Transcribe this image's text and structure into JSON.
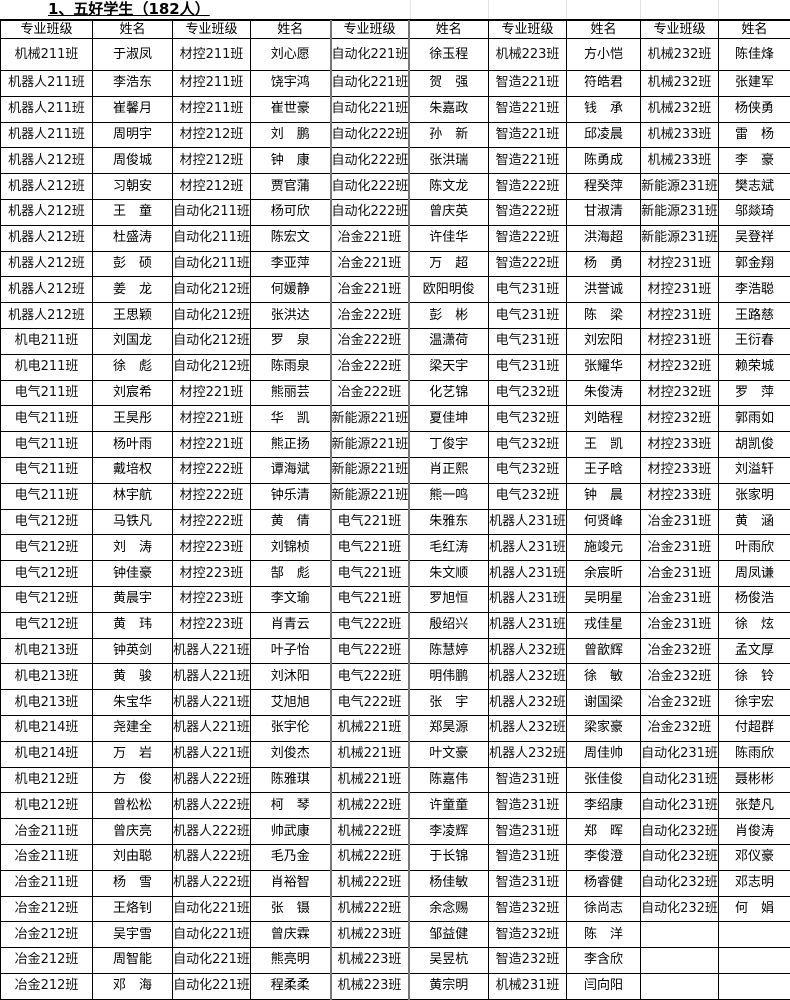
{
  "title": "1、五好学生（182人）",
  "headers": [
    "专业班级",
    "姓名",
    "专业班级",
    "姓名",
    "专业班级",
    "姓名",
    "专业班级",
    "姓名",
    "专业班级",
    "姓名"
  ],
  "rows": [
    [
      "机械211班",
      "于淑凤",
      "材控211班",
      "刘心愿",
      "自动化221班",
      "徐玉程",
      "机械223班",
      "方小恺",
      "机械232班",
      "陈佳烽"
    ],
    [
      "机器人211班",
      "李浩东",
      "材控211班",
      "饶宇鸿",
      "自动化221班",
      "贺　强",
      "智造221班",
      "符皓君",
      "机械232班",
      "张建军"
    ],
    [
      "机器人211班",
      "崔馨月",
      "材控211班",
      "崔世豪",
      "自动化221班",
      "朱嘉政",
      "智造221班",
      "钱　承",
      "机械232班",
      "杨侠勇"
    ],
    [
      "机器人211班",
      "周明宇",
      "材控212班",
      "刘　鹏",
      "自动化222班",
      "孙　新",
      "智造221班",
      "邱凌晨",
      "机械233班",
      "雷　杨"
    ],
    [
      "机器人212班",
      "周俊城",
      "材控212班",
      "钟　康",
      "自动化222班",
      "张洪瑞",
      "智造221班",
      "陈勇成",
      "机械233班",
      "李　豪"
    ],
    [
      "机器人212班",
      "习朝安",
      "材控212班",
      "贾官蒲",
      "自动化222班",
      "陈文龙",
      "智造222班",
      "程癸萍",
      "新能源231班",
      "樊志斌"
    ],
    [
      "机器人212班",
      "王　童",
      "自动化211班",
      "杨可欣",
      "自动化222班",
      "曾庆英",
      "智造222班",
      "甘淑清",
      "新能源231班",
      "邬燚琦"
    ],
    [
      "机器人212班",
      "杜盛涛",
      "自动化211班",
      "陈宏文",
      "冶金221班",
      "许佳华",
      "智造222班",
      "洪海超",
      "新能源231班",
      "吴登祥"
    ],
    [
      "机器人212班",
      "彭　硕",
      "自动化211班",
      "李亚萍",
      "冶金221班",
      "万　超",
      "智造222班",
      "杨　勇",
      "材控231班",
      "郭金翔"
    ],
    [
      "机器人212班",
      "姜　龙",
      "自动化212班",
      "何媛静",
      "冶金221班",
      "欧阳明俊",
      "电气231班",
      "洪誉诚",
      "材控231班",
      "李浩聪"
    ],
    [
      "机器人212班",
      "王思颖",
      "自动化212班",
      "张洪达",
      "冶金222班",
      "彭　彬",
      "电气231班",
      "陈　梁",
      "材控231班",
      "王路慈"
    ],
    [
      "机电211班",
      "刘国龙",
      "自动化212班",
      "罗　泉",
      "冶金222班",
      "温潇荷",
      "电气231班",
      "刘宏阳",
      "材控231班",
      "王衍春"
    ],
    [
      "机电211班",
      "徐　彪",
      "自动化212班",
      "陈雨泉",
      "冶金222班",
      "梁天宇",
      "电气231班",
      "张耀华",
      "材控232班",
      "赖荣城"
    ],
    [
      "电气211班",
      "刘宸希",
      "材控221班",
      "熊丽芸",
      "冶金222班",
      "化艺锦",
      "电气232班",
      "朱俊涛",
      "材控232班",
      "罗　萍"
    ],
    [
      "电气211班",
      "王昊彤",
      "材控221班",
      "华　凯",
      "新能源221班",
      "夏佳坤",
      "电气232班",
      "刘皓程",
      "材控232班",
      "郭雨如"
    ],
    [
      "电气211班",
      "杨叶雨",
      "材控221班",
      "熊正扬",
      "新能源221班",
      "丁俊宇",
      "电气232班",
      "王　凯",
      "材控233班",
      "胡凯俊"
    ],
    [
      "电气211班",
      "戴培权",
      "材控222班",
      "谭海斌",
      "新能源221班",
      "肖正熙",
      "电气232班",
      "王子晗",
      "材控233班",
      "刘溢轩"
    ],
    [
      "电气211班",
      "林宇航",
      "材控222班",
      "钟乐清",
      "新能源221班",
      "熊一鸣",
      "电气232班",
      "钟　晨",
      "材控233班",
      "张家明"
    ],
    [
      "电气212班",
      "马铁凡",
      "材控222班",
      "黄　倩",
      "电气221班",
      "朱雅东",
      "机器人231班",
      "何贤峰",
      "冶金231班",
      "黄　涵"
    ],
    [
      "电气212班",
      "刘　涛",
      "材控223班",
      "刘锦桢",
      "电气221班",
      "毛红涛",
      "机器人231班",
      "施竣元",
      "冶金231班",
      "叶雨欣"
    ],
    [
      "电气212班",
      "钟佳豪",
      "材控223班",
      "郜　彪",
      "电气221班",
      "朱文顺",
      "机器人231班",
      "余宸昕",
      "冶金231班",
      "周凤谦"
    ],
    [
      "电气212班",
      "黄晨宇",
      "材控223班",
      "李文瑜",
      "电气221班",
      "罗旭恒",
      "机器人231班",
      "吴明星",
      "冶金231班",
      "杨俊浩"
    ],
    [
      "电气212班",
      "黄　玮",
      "材控223班",
      "肖青云",
      "电气222班",
      "殷绍兴",
      "机器人231班",
      "戎佳星",
      "冶金231班",
      "徐　炫"
    ],
    [
      "机电213班",
      "钟英剑",
      "机器人221班",
      "叶子怡",
      "电气222班",
      "陈慧婷",
      "机器人232班",
      "曾歆辉",
      "冶金232班",
      "孟文厚"
    ],
    [
      "机电213班",
      "黄　骏",
      "机器人221班",
      "刘沐阳",
      "电气222班",
      "明伟鹏",
      "机器人232班",
      "徐　敏",
      "冶金232班",
      "徐　铃"
    ],
    [
      "机电213班",
      "朱宝华",
      "机器人221班",
      "艾旭旭",
      "电气222班",
      "张　宇",
      "机器人232班",
      "谢国梁",
      "冶金232班",
      "徐宇宏"
    ],
    [
      "机电214班",
      "尧建全",
      "机器人221班",
      "张宇伦",
      "机械221班",
      "郑昊源",
      "机器人232班",
      "梁家豪",
      "冶金232班",
      "付超群"
    ],
    [
      "机电214班",
      "万　岩",
      "机器人221班",
      "刘俊杰",
      "机械221班",
      "叶文豪",
      "机器人232班",
      "周佳帅",
      "自动化231班",
      "陈雨欣"
    ],
    [
      "机电212班",
      "方　俊",
      "机器人222班",
      "陈雅琪",
      "机械221班",
      "陈嘉伟",
      "智造231班",
      "张佳俊",
      "自动化231班",
      "聂彬彬"
    ],
    [
      "机电212班",
      "曾松松",
      "机器人222班",
      "柯　琴",
      "机械222班",
      "许童童",
      "智造231班",
      "李绍康",
      "自动化231班",
      "张楚凡"
    ],
    [
      "冶金211班",
      "曾庆亮",
      "机器人222班",
      "帅武康",
      "机械222班",
      "李凌辉",
      "智造231班",
      "郑　晖",
      "自动化232班",
      "肖俊涛"
    ],
    [
      "冶金211班",
      "刘由聪",
      "机器人222班",
      "毛乃金",
      "机械222班",
      "于长锦",
      "智造231班",
      "李俊澄",
      "自动化232班",
      "邓仪豪"
    ],
    [
      "冶金211班",
      "杨　雪",
      "机器人222班",
      "肖裕智",
      "机械222班",
      "杨佳敏",
      "智造231班",
      "杨睿健",
      "自动化232班",
      "邓志明"
    ],
    [
      "冶金212班",
      "王烙钊",
      "自动化221班",
      "张　镊",
      "机械222班",
      "余念赐",
      "智造232班",
      "徐尚志",
      "自动化232班",
      "何　娟"
    ],
    [
      "冶金212班",
      "吴宇雪",
      "自动化221班",
      "曾庆霖",
      "机械223班",
      "邹益健",
      "智造232班",
      "陈　洋",
      "",
      ""
    ],
    [
      "冶金212班",
      "周智能",
      "自动化221班",
      "熊亮明",
      "机械223班",
      "吴昱杭",
      "智造232班",
      "李含欣",
      "",
      ""
    ],
    [
      "冶金212班",
      "邓　海",
      "自动化221班",
      "程柔柔",
      "机械223班",
      "黄宗明",
      "机械231班",
      "闫向阳",
      "",
      ""
    ]
  ]
}
